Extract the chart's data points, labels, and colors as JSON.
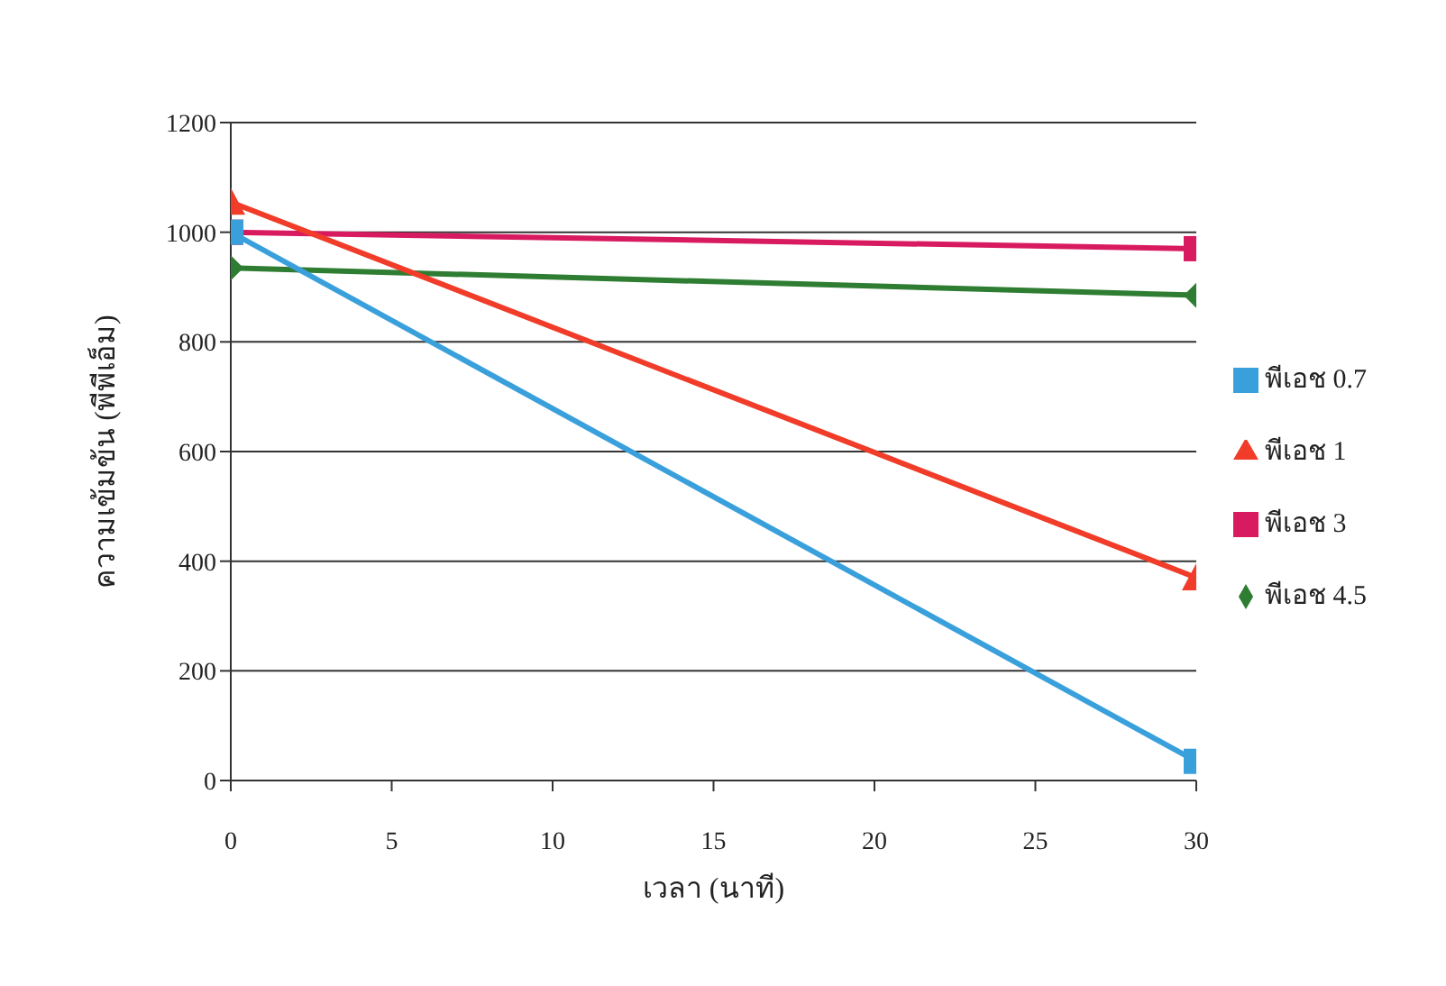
{
  "chart_data": {
    "type": "line",
    "xlabel": "เวลา (นาที)",
    "ylabel": "ความเข้มข้น (พีพีเอ็ม)",
    "x": [
      0,
      30
    ],
    "xlim": [
      0,
      30
    ],
    "xticks": [
      0,
      5,
      10,
      15,
      20,
      25,
      30
    ],
    "ylim": [
      0,
      1200
    ],
    "yticks": [
      0,
      200,
      400,
      600,
      800,
      1000,
      1200
    ],
    "grid": "y",
    "legend": "right",
    "series": [
      {
        "name": "พีเอช 4.5",
        "color": "#2e7d32",
        "marker": "diamond",
        "values": [
          935,
          885
        ]
      },
      {
        "name": "พีเอช 3",
        "color": "#d81b60",
        "marker": "square",
        "values": [
          1000,
          970
        ]
      },
      {
        "name": "พีเอช 1",
        "color": "#f03c28",
        "marker": "triangle",
        "values": [
          1055,
          370
        ]
      },
      {
        "name": "พีเอช 0.7",
        "color": "#3aa0dc",
        "marker": "square",
        "values": [
          1000,
          35
        ]
      }
    ]
  }
}
